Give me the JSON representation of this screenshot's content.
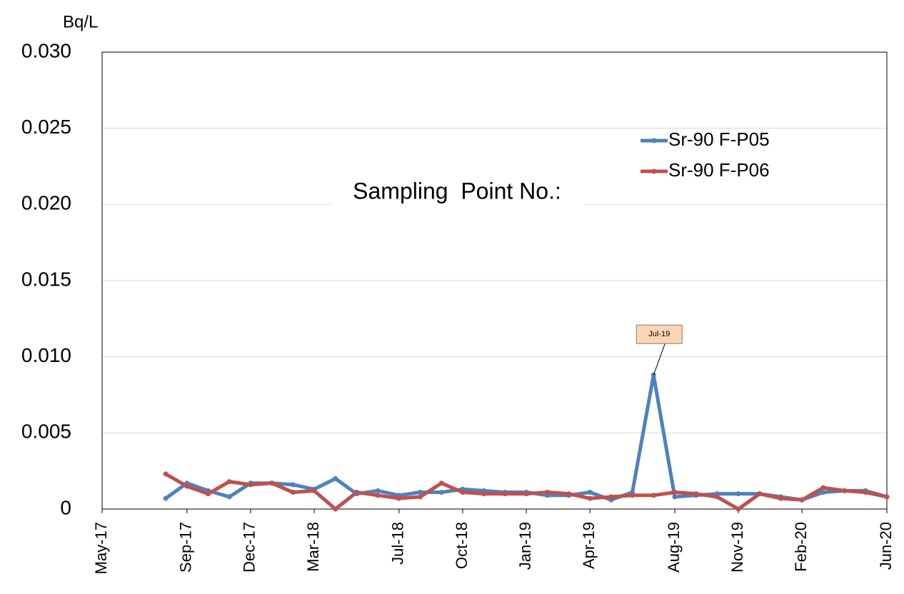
{
  "chart_data": {
    "type": "line",
    "y_axis_label": "Bq/L",
    "annotations": [
      {
        "text": "Sampling  Point No.:"
      },
      {
        "text": "Jul-19"
      }
    ],
    "x": [
      "Aug-17",
      "Sep-17",
      "Oct-17",
      "Nov-17",
      "Dec-17",
      "Jan-18",
      "Feb-18",
      "Mar-18",
      "Apr-18",
      "May-18",
      "Jun-18",
      "Jul-18",
      "Aug-18",
      "Sep-18",
      "Oct-18",
      "Nov-18",
      "Dec-18",
      "Jan-19",
      "Feb-19",
      "Mar-19",
      "Apr-19",
      "May-19",
      "Jun-19",
      "Jul-19",
      "Aug-19",
      "Sep-19",
      "Oct-19",
      "Nov-19",
      "Dec-19",
      "Jan-20",
      "Feb-20",
      "Mar-20",
      "Apr-20",
      "May-20",
      "Jun-20"
    ],
    "series": [
      {
        "name": "Sr-90 F-P05",
        "color": "#4f81bd",
        "values": [
          0.0007,
          0.0017,
          0.0012,
          0.0008,
          0.0017,
          0.0017,
          0.0016,
          0.0013,
          0.002,
          0.001,
          0.0012,
          0.0009,
          0.0011,
          0.0011,
          0.0013,
          0.0012,
          0.0011,
          0.0011,
          0.0009,
          0.0009,
          0.0011,
          0.0006,
          0.0011,
          0.0088,
          0.0008,
          0.0009,
          0.001,
          0.001,
          0.001,
          0.0008,
          0.0006,
          0.0011,
          0.0012,
          0.0012,
          0.0008
        ]
      },
      {
        "name": "Sr-90 F-P06",
        "color": "#c0504d",
        "values": [
          0.0023,
          0.0015,
          0.001,
          0.0018,
          0.0016,
          0.0017,
          0.0011,
          0.0012,
          0.0,
          0.0011,
          0.0009,
          0.0007,
          0.0008,
          0.0017,
          0.0011,
          0.001,
          0.001,
          0.001,
          0.0011,
          0.001,
          0.0007,
          0.0008,
          0.0009,
          0.0009,
          0.0011,
          0.001,
          0.0008,
          0.0,
          0.001,
          0.0007,
          0.0006,
          0.0014,
          0.0012,
          0.0011,
          0.0008
        ]
      }
    ],
    "xlim": [
      "May-17",
      "Jun-20"
    ],
    "xticks": [
      "May-17",
      "Sep-17",
      "Dec-17",
      "Mar-18",
      "Jul-18",
      "Oct-18",
      "Jan-19",
      "Apr-19",
      "Aug-19",
      "Nov-19",
      "Feb-20",
      "Jun-20"
    ],
    "ylim": [
      0,
      0.03
    ],
    "yticks": [
      0,
      0.005,
      {
        "value": 0.01,
        "label": "0.010"
      },
      0.015,
      {
        "value": 0.02,
        "label": "0.020"
      },
      0.025,
      {
        "value": 0.03,
        "label": "0.030"
      }
    ],
    "grid": true,
    "legend": "upper-right"
  }
}
